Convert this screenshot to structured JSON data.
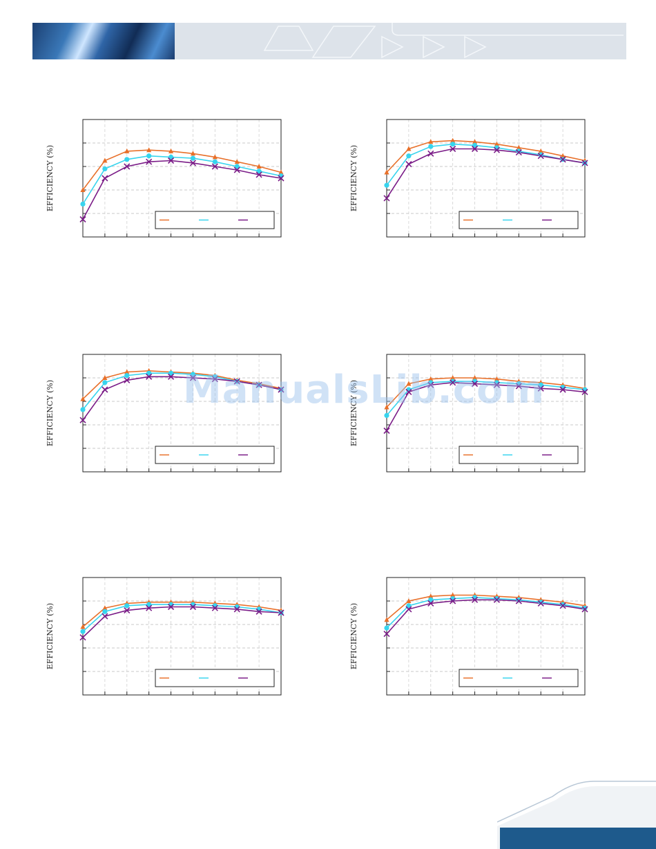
{
  "watermark": "ManualsLib.com",
  "colors": {
    "series1": "#e8702a",
    "series2": "#37d4ee",
    "series3": "#7a1b87",
    "banner": "#1e5a8c"
  },
  "chart_data": [
    {
      "type": "line",
      "ylabel": "EFFICIENCY (%)",
      "ylim": [
        0,
        100
      ],
      "xlim": [
        0,
        9
      ],
      "grid": true,
      "legend": "bottom-right",
      "markers": [
        "triangle",
        "circle",
        "x"
      ],
      "series": [
        {
          "x": [
            0,
            1,
            2,
            3,
            4,
            5,
            6,
            7,
            8,
            9
          ],
          "values": [
            40,
            65,
            73,
            74,
            73,
            71,
            68,
            64,
            60,
            55
          ]
        },
        {
          "x": [
            0,
            1,
            2,
            3,
            4,
            5,
            6,
            7,
            8,
            9
          ],
          "values": [
            28,
            58,
            66,
            69,
            68,
            67,
            64,
            60,
            56,
            52
          ]
        },
        {
          "x": [
            0,
            1,
            2,
            3,
            4,
            5,
            6,
            7,
            8,
            9
          ],
          "values": [
            15,
            50,
            60,
            64,
            65,
            63,
            60,
            57,
            53,
            50
          ]
        }
      ]
    },
    {
      "type": "line",
      "ylabel": "EFFICIENCY (%)",
      "ylim": [
        0,
        100
      ],
      "xlim": [
        0,
        9
      ],
      "grid": true,
      "legend": "bottom-right",
      "markers": [
        "triangle",
        "circle",
        "x"
      ],
      "series": [
        {
          "x": [
            0,
            1,
            2,
            3,
            4,
            5,
            6,
            7,
            8,
            9
          ],
          "values": [
            55,
            75,
            81,
            82,
            81,
            79,
            76,
            73,
            69,
            65
          ]
        },
        {
          "x": [
            0,
            1,
            2,
            3,
            4,
            5,
            6,
            7,
            8,
            9
          ],
          "values": [
            44,
            69,
            77,
            79,
            78,
            76,
            73,
            70,
            66,
            63
          ]
        },
        {
          "x": [
            0,
            1,
            2,
            3,
            4,
            5,
            6,
            7,
            8,
            9
          ],
          "values": [
            33,
            62,
            71,
            75,
            75,
            74,
            72,
            69,
            66,
            63
          ]
        }
      ]
    },
    {
      "type": "line",
      "ylabel": "EFFICIENCY (%)",
      "ylim": [
        0,
        100
      ],
      "xlim": [
        0,
        9
      ],
      "grid": true,
      "legend": "bottom-right",
      "markers": [
        "triangle",
        "circle",
        "x"
      ],
      "series": [
        {
          "x": [
            0,
            1,
            2,
            3,
            4,
            5,
            6,
            7,
            8,
            9
          ],
          "values": [
            62,
            80,
            85,
            86,
            85,
            84,
            82,
            78,
            75,
            71
          ]
        },
        {
          "x": [
            0,
            1,
            2,
            3,
            4,
            5,
            6,
            7,
            8,
            9
          ],
          "values": [
            53,
            76,
            82,
            84,
            84,
            83,
            81,
            77,
            74,
            70
          ]
        },
        {
          "x": [
            0,
            1,
            2,
            3,
            4,
            5,
            6,
            7,
            8,
            9
          ],
          "values": [
            44,
            70,
            78,
            81,
            81,
            80,
            79,
            77,
            74,
            70
          ]
        }
      ]
    },
    {
      "type": "line",
      "ylabel": "EFFICIENCY (%)",
      "ylim": [
        0,
        100
      ],
      "xlim": [
        0,
        9
      ],
      "grid": true,
      "legend": "bottom-right",
      "markers": [
        "triangle",
        "circle",
        "x"
      ],
      "series": [
        {
          "x": [
            0,
            1,
            2,
            3,
            4,
            5,
            6,
            7,
            8,
            9
          ],
          "values": [
            55,
            75,
            79,
            80,
            80,
            79,
            77,
            76,
            74,
            71
          ]
        },
        {
          "x": [
            0,
            1,
            2,
            3,
            4,
            5,
            6,
            7,
            8,
            9
          ],
          "values": [
            48,
            70,
            76,
            77,
            77,
            76,
            75,
            74,
            72,
            70
          ]
        },
        {
          "x": [
            0,
            1,
            2,
            3,
            4,
            5,
            6,
            7,
            8,
            9
          ],
          "values": [
            35,
            68,
            74,
            76,
            75,
            74,
            73,
            71,
            70,
            68
          ]
        }
      ]
    },
    {
      "type": "line",
      "ylabel": "EFFICIENCY (%)",
      "ylim": [
        0,
        100
      ],
      "xlim": [
        0,
        9
      ],
      "grid": true,
      "legend": "bottom-right",
      "markers": [
        "triangle",
        "circle",
        "x"
      ],
      "series": [
        {
          "x": [
            0,
            1,
            2,
            3,
            4,
            5,
            6,
            7,
            8,
            9
          ],
          "values": [
            58,
            74,
            78,
            79,
            79,
            79,
            78,
            77,
            75,
            72
          ]
        },
        {
          "x": [
            0,
            1,
            2,
            3,
            4,
            5,
            6,
            7,
            8,
            9
          ],
          "values": [
            54,
            71,
            76,
            77,
            77,
            77,
            76,
            75,
            73,
            70
          ]
        },
        {
          "x": [
            0,
            1,
            2,
            3,
            4,
            5,
            6,
            7,
            8,
            9
          ],
          "values": [
            49,
            67,
            72,
            74,
            75,
            75,
            74,
            73,
            71,
            70
          ]
        }
      ]
    },
    {
      "type": "line",
      "ylabel": "EFFICIENCY (%)",
      "ylim": [
        0,
        100
      ],
      "xlim": [
        0,
        9
      ],
      "grid": true,
      "legend": "bottom-right",
      "markers": [
        "triangle",
        "circle",
        "x"
      ],
      "series": [
        {
          "x": [
            0,
            1,
            2,
            3,
            4,
            5,
            6,
            7,
            8,
            9
          ],
          "values": [
            64,
            80,
            84,
            85,
            85,
            84,
            83,
            81,
            79,
            76
          ]
        },
        {
          "x": [
            0,
            1,
            2,
            3,
            4,
            5,
            6,
            7,
            8,
            9
          ],
          "values": [
            57,
            76,
            81,
            82,
            83,
            82,
            81,
            79,
            77,
            74
          ]
        },
        {
          "x": [
            0,
            1,
            2,
            3,
            4,
            5,
            6,
            7,
            8,
            9
          ],
          "values": [
            52,
            73,
            78,
            80,
            81,
            81,
            80,
            78,
            76,
            73
          ]
        }
      ]
    }
  ]
}
